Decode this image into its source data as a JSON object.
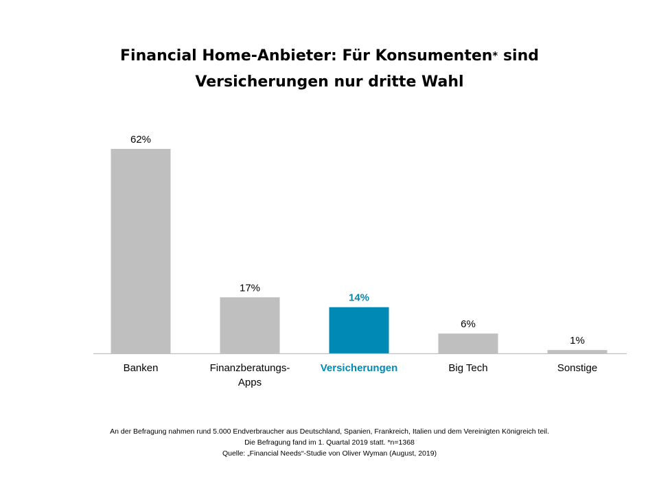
{
  "title": {
    "line1_pre": "Financial Home-Anbieter: Für Konsumenten",
    "star": "*",
    "line1_post": " sind",
    "line2": "Versicherungen nur dritte Wahl"
  },
  "chart_data": {
    "type": "bar",
    "title": "Financial Home-Anbieter: Für Konsumenten* sind Versicherungen nur dritte Wahl",
    "categories": [
      "Banken",
      "Finanzberatungs-Apps",
      "Versicherungen",
      "Big Tech",
      "Sonstige"
    ],
    "category_lines": [
      [
        "Banken"
      ],
      [
        "Finanzberatungs-",
        "Apps"
      ],
      [
        "Versicherungen"
      ],
      [
        "Big Tech"
      ],
      [
        "Sonstige"
      ]
    ],
    "values": [
      62,
      17,
      14,
      6,
      1
    ],
    "value_labels": [
      "62%",
      "17%",
      "14%",
      "6%",
      "1%"
    ],
    "highlight_index": 2,
    "colors": {
      "default": "#bfbfbf",
      "highlight": "#0089b5",
      "axis": "#bfbfbf"
    },
    "ylim": [
      0,
      62
    ],
    "grid": false,
    "legend": "none"
  },
  "footnote": {
    "line1": "An der Befragung nahmen rund 5.000 Endverbraucher aus Deutschland, Spanien, Frankreich, Italien und dem Vereinigten Königreich teil.",
    "line2": "Die Befragung fand im 1. Quartal 2019 statt. *n=1368",
    "line3": "Quelle: „Financial Needs“-Studie von Oliver Wyman (August, 2019)"
  }
}
